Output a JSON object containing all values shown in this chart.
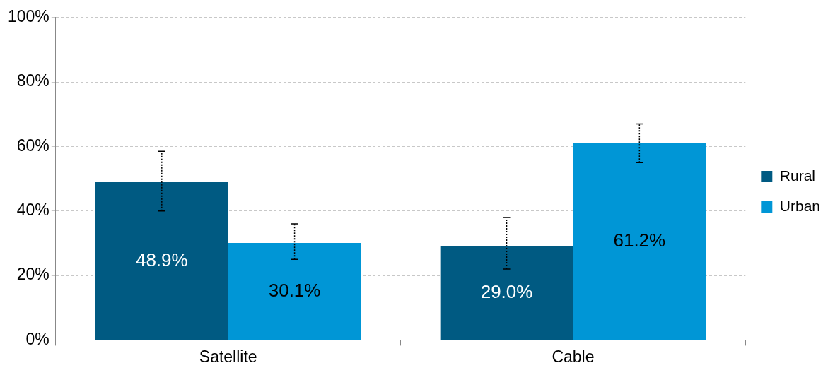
{
  "chart_data": {
    "type": "bar",
    "categories": [
      "Satellite",
      "Cable"
    ],
    "series": [
      {
        "name": "Rural",
        "color": "#005a82",
        "values": [
          48.9,
          29.0
        ],
        "value_labels": [
          "48.9%",
          "29.0%"
        ],
        "errors": [
          [
            40,
            58.5
          ],
          [
            22,
            38
          ]
        ]
      },
      {
        "name": "Urban",
        "color": "#0096d6",
        "values": [
          30.1,
          61.2
        ],
        "value_labels": [
          "30.1%",
          "61.2%"
        ],
        "errors": [
          [
            25,
            36
          ],
          [
            55,
            67
          ]
        ]
      }
    ],
    "ylim": [
      0,
      100
    ],
    "yticks": [
      {
        "value": 0,
        "label": "0%"
      },
      {
        "value": 20,
        "label": "20%"
      },
      {
        "value": 40,
        "label": "40%"
      },
      {
        "value": 60,
        "label": "60%"
      },
      {
        "value": 80,
        "label": "80%"
      },
      {
        "value": 100,
        "label": "100%"
      }
    ],
    "grid": "y",
    "legend": "right"
  }
}
